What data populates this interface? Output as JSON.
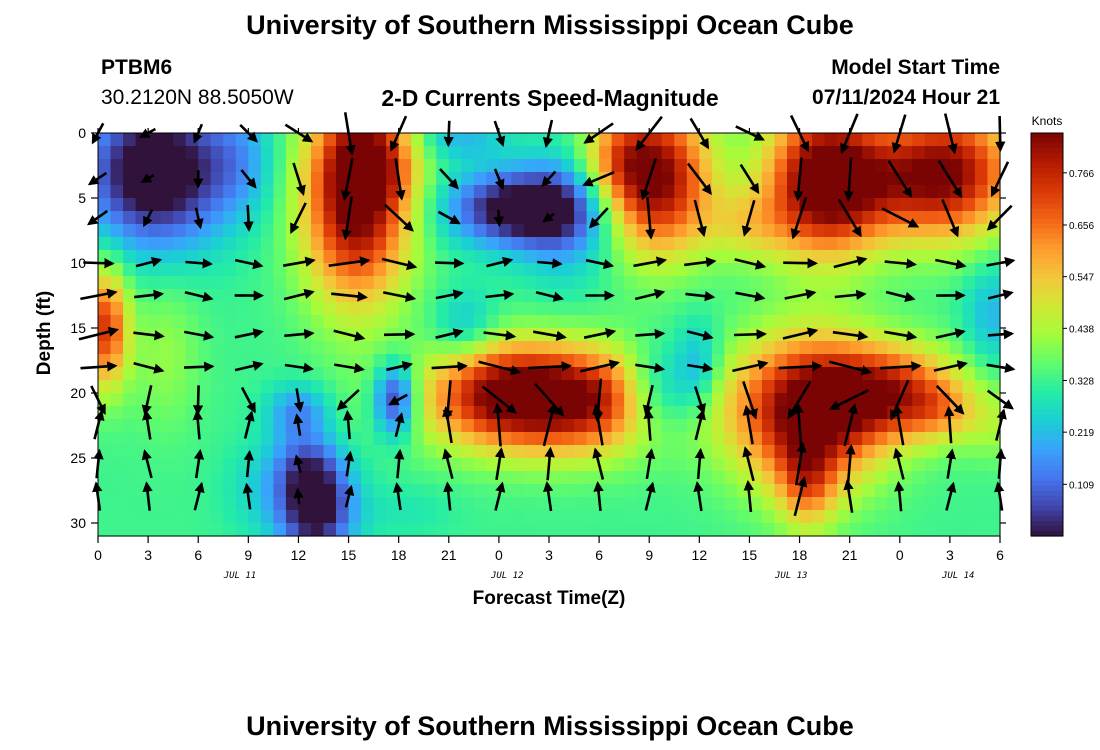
{
  "header": {
    "title": "University of Southern Mississippi Ocean Cube",
    "station": "PTBM6",
    "coords": "30.2120N  88.5050W",
    "chart_title": "2-D Currents Speed-Magnitude",
    "start_label": "Model Start Time",
    "start_value": "07/11/2024 Hour 21"
  },
  "footer": {
    "title": "University of Southern Mississippi Ocean Cube"
  },
  "colors": {
    "colormap": [
      "#30123b",
      "#4145ab",
      "#4675ed",
      "#39a2fc",
      "#1bcfd4",
      "#24eca6",
      "#61fc6c",
      "#a4fc3b",
      "#d1e834",
      "#f3c63a",
      "#fe9b2d",
      "#f36315",
      "#d93806",
      "#b11901",
      "#7a0403"
    ],
    "arrow": "#000000",
    "axis": "#000000"
  },
  "chart_data": {
    "type": "heatmap",
    "title": "2-D Currents Speed-Magnitude",
    "xlabel": "Forecast Time(Z)",
    "ylabel": "Depth (ft)",
    "xlim": [
      0,
      54
    ],
    "ylim": [
      0,
      31
    ],
    "x_tick_values": [
      0,
      3,
      6,
      9,
      12,
      15,
      18,
      21,
      24,
      27,
      30,
      33,
      36,
      39,
      42,
      45,
      48,
      51,
      54
    ],
    "x_tick_labels": [
      "0",
      "3",
      "6",
      "9",
      "12",
      "15",
      "18",
      "21",
      "0",
      "3",
      "6",
      "9",
      "12",
      "15",
      "18",
      "21",
      "0",
      "3",
      "6"
    ],
    "y_tick_values": [
      0,
      5,
      10,
      15,
      20,
      25,
      30
    ],
    "y_tick_labels": [
      "0",
      "5",
      "10",
      "15",
      "20",
      "25",
      "30"
    ],
    "date_labels": [
      {
        "text": "JUL 11",
        "at": 8.5
      },
      {
        "text": "JUL 12",
        "at": 24.5
      },
      {
        "text": "JUL 13",
        "at": 41.5
      },
      {
        "text": "JUL 14",
        "at": 51.5
      }
    ],
    "colorbar": {
      "unit": "Knots",
      "range": [
        0,
        0.85
      ],
      "tick_values": [
        0.766,
        0.656,
        0.547,
        0.438,
        0.328,
        0.219,
        0.109
      ],
      "tick_labels": [
        "0.766",
        "0.656",
        "0.547",
        "0.438",
        "0.328",
        "0.219",
        "0.109"
      ]
    },
    "vector_depths_ft": [
      0,
      3.5,
      6.5,
      10,
      12.5,
      15.5,
      18,
      20.5,
      22.5,
      25.5,
      28
    ]
  }
}
